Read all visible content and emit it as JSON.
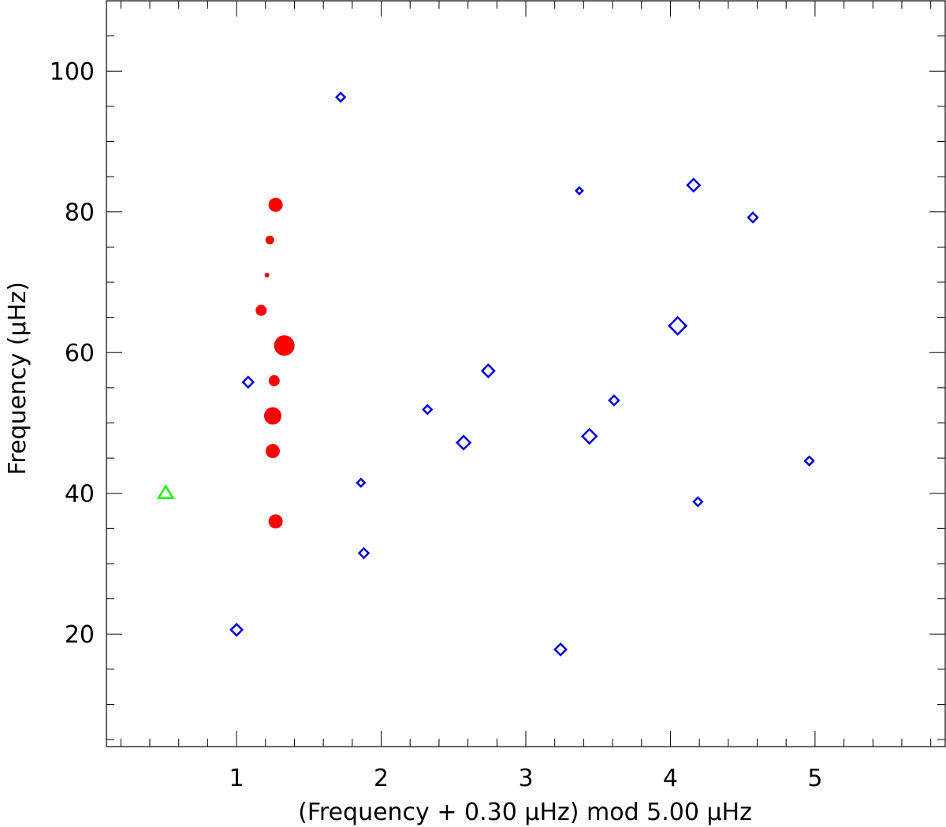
{
  "chart_data": {
    "type": "scatter",
    "title": "",
    "xlabel": "(Frequency + 0.30 μHz) mod 5.00 μHz",
    "ylabel": "Frequency (μHz)",
    "xlim": [
      0.1,
      5.9
    ],
    "ylim": [
      4,
      110
    ],
    "x_ticks": [
      "1",
      "2",
      "3",
      "4",
      "5"
    ],
    "y_ticks": [
      "20",
      "40",
      "60",
      "80",
      "100"
    ],
    "grid": false,
    "series": [
      {
        "marker": "filled-circle",
        "color": "#ff0000",
        "points": [
          {
            "x": 1.27,
            "y": 81.0,
            "size": 1.8
          },
          {
            "x": 1.23,
            "y": 76.0,
            "size": 1.1
          },
          {
            "x": 1.21,
            "y": 71.0,
            "size": 0.6
          },
          {
            "x": 1.17,
            "y": 66.0,
            "size": 1.4
          },
          {
            "x": 1.33,
            "y": 61.0,
            "size": 2.6
          },
          {
            "x": 1.26,
            "y": 56.0,
            "size": 1.4
          },
          {
            "x": 1.25,
            "y": 51.0,
            "size": 2.2
          },
          {
            "x": 1.25,
            "y": 46.0,
            "size": 1.8
          },
          {
            "x": 1.27,
            "y": 36.0,
            "size": 1.8
          }
        ]
      },
      {
        "marker": "open-diamond",
        "color": "#0000dd",
        "points": [
          {
            "x": 1.72,
            "y": 96.3,
            "size": 0.9
          },
          {
            "x": 3.37,
            "y": 83.0,
            "size": 0.7
          },
          {
            "x": 4.16,
            "y": 83.8,
            "size": 1.3
          },
          {
            "x": 4.57,
            "y": 79.2,
            "size": 1.0
          },
          {
            "x": 4.05,
            "y": 63.8,
            "size": 1.8
          },
          {
            "x": 1.08,
            "y": 55.8,
            "size": 1.1
          },
          {
            "x": 2.74,
            "y": 57.4,
            "size": 1.3
          },
          {
            "x": 3.61,
            "y": 53.2,
            "size": 1.0
          },
          {
            "x": 2.32,
            "y": 51.9,
            "size": 0.9
          },
          {
            "x": 2.57,
            "y": 47.2,
            "size": 1.4
          },
          {
            "x": 3.44,
            "y": 48.1,
            "size": 1.5
          },
          {
            "x": 4.96,
            "y": 44.6,
            "size": 0.9
          },
          {
            "x": 1.86,
            "y": 41.5,
            "size": 0.8
          },
          {
            "x": 4.19,
            "y": 38.8,
            "size": 0.9
          },
          {
            "x": 1.88,
            "y": 31.5,
            "size": 1.0
          },
          {
            "x": 1.0,
            "y": 20.6,
            "size": 1.2
          },
          {
            "x": 3.24,
            "y": 17.8,
            "size": 1.2
          }
        ]
      },
      {
        "marker": "open-triangle",
        "color": "#00ff00",
        "points": [
          {
            "x": 0.51,
            "y": 40.0,
            "size": 1.3
          }
        ]
      }
    ]
  }
}
